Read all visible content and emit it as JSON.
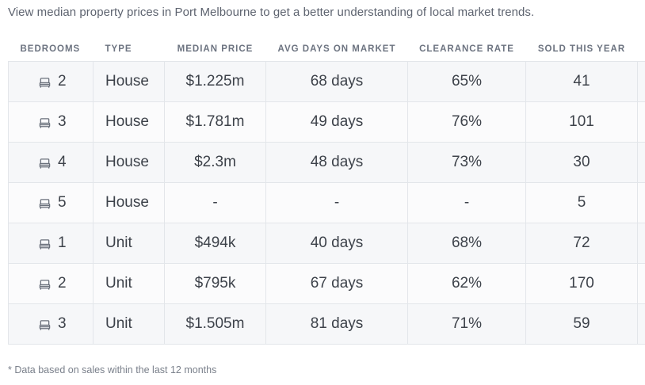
{
  "intro_text": "View median property prices in Port Melbourne to get a better understanding of local market trends.",
  "columns": {
    "bedrooms": "BEDROOMS",
    "type": "TYPE",
    "median_price": "MEDIAN PRICE",
    "avg_days": "AVG DAYS ON MARKET",
    "clearance": "CLEARANCE RATE",
    "sold": "SOLD THIS YEAR"
  },
  "bed_icon_name": "bed-icon",
  "rows": [
    {
      "bedrooms": "2",
      "type": "House",
      "median_price": "$1.225m",
      "avg_days": "68 days",
      "clearance": "65%",
      "sold": "41"
    },
    {
      "bedrooms": "3",
      "type": "House",
      "median_price": "$1.781m",
      "avg_days": "49 days",
      "clearance": "76%",
      "sold": "101"
    },
    {
      "bedrooms": "4",
      "type": "House",
      "median_price": "$2.3m",
      "avg_days": "48 days",
      "clearance": "73%",
      "sold": "30"
    },
    {
      "bedrooms": "5",
      "type": "House",
      "median_price": "-",
      "avg_days": "-",
      "clearance": "-",
      "sold": "5"
    },
    {
      "bedrooms": "1",
      "type": "Unit",
      "median_price": "$494k",
      "avg_days": "40 days",
      "clearance": "68%",
      "sold": "72"
    },
    {
      "bedrooms": "2",
      "type": "Unit",
      "median_price": "$795k",
      "avg_days": "67 days",
      "clearance": "62%",
      "sold": "170"
    },
    {
      "bedrooms": "3",
      "type": "Unit",
      "median_price": "$1.505m",
      "avg_days": "81 days",
      "clearance": "71%",
      "sold": "59"
    }
  ],
  "footnote": "* Data based on sales within the last 12 months"
}
